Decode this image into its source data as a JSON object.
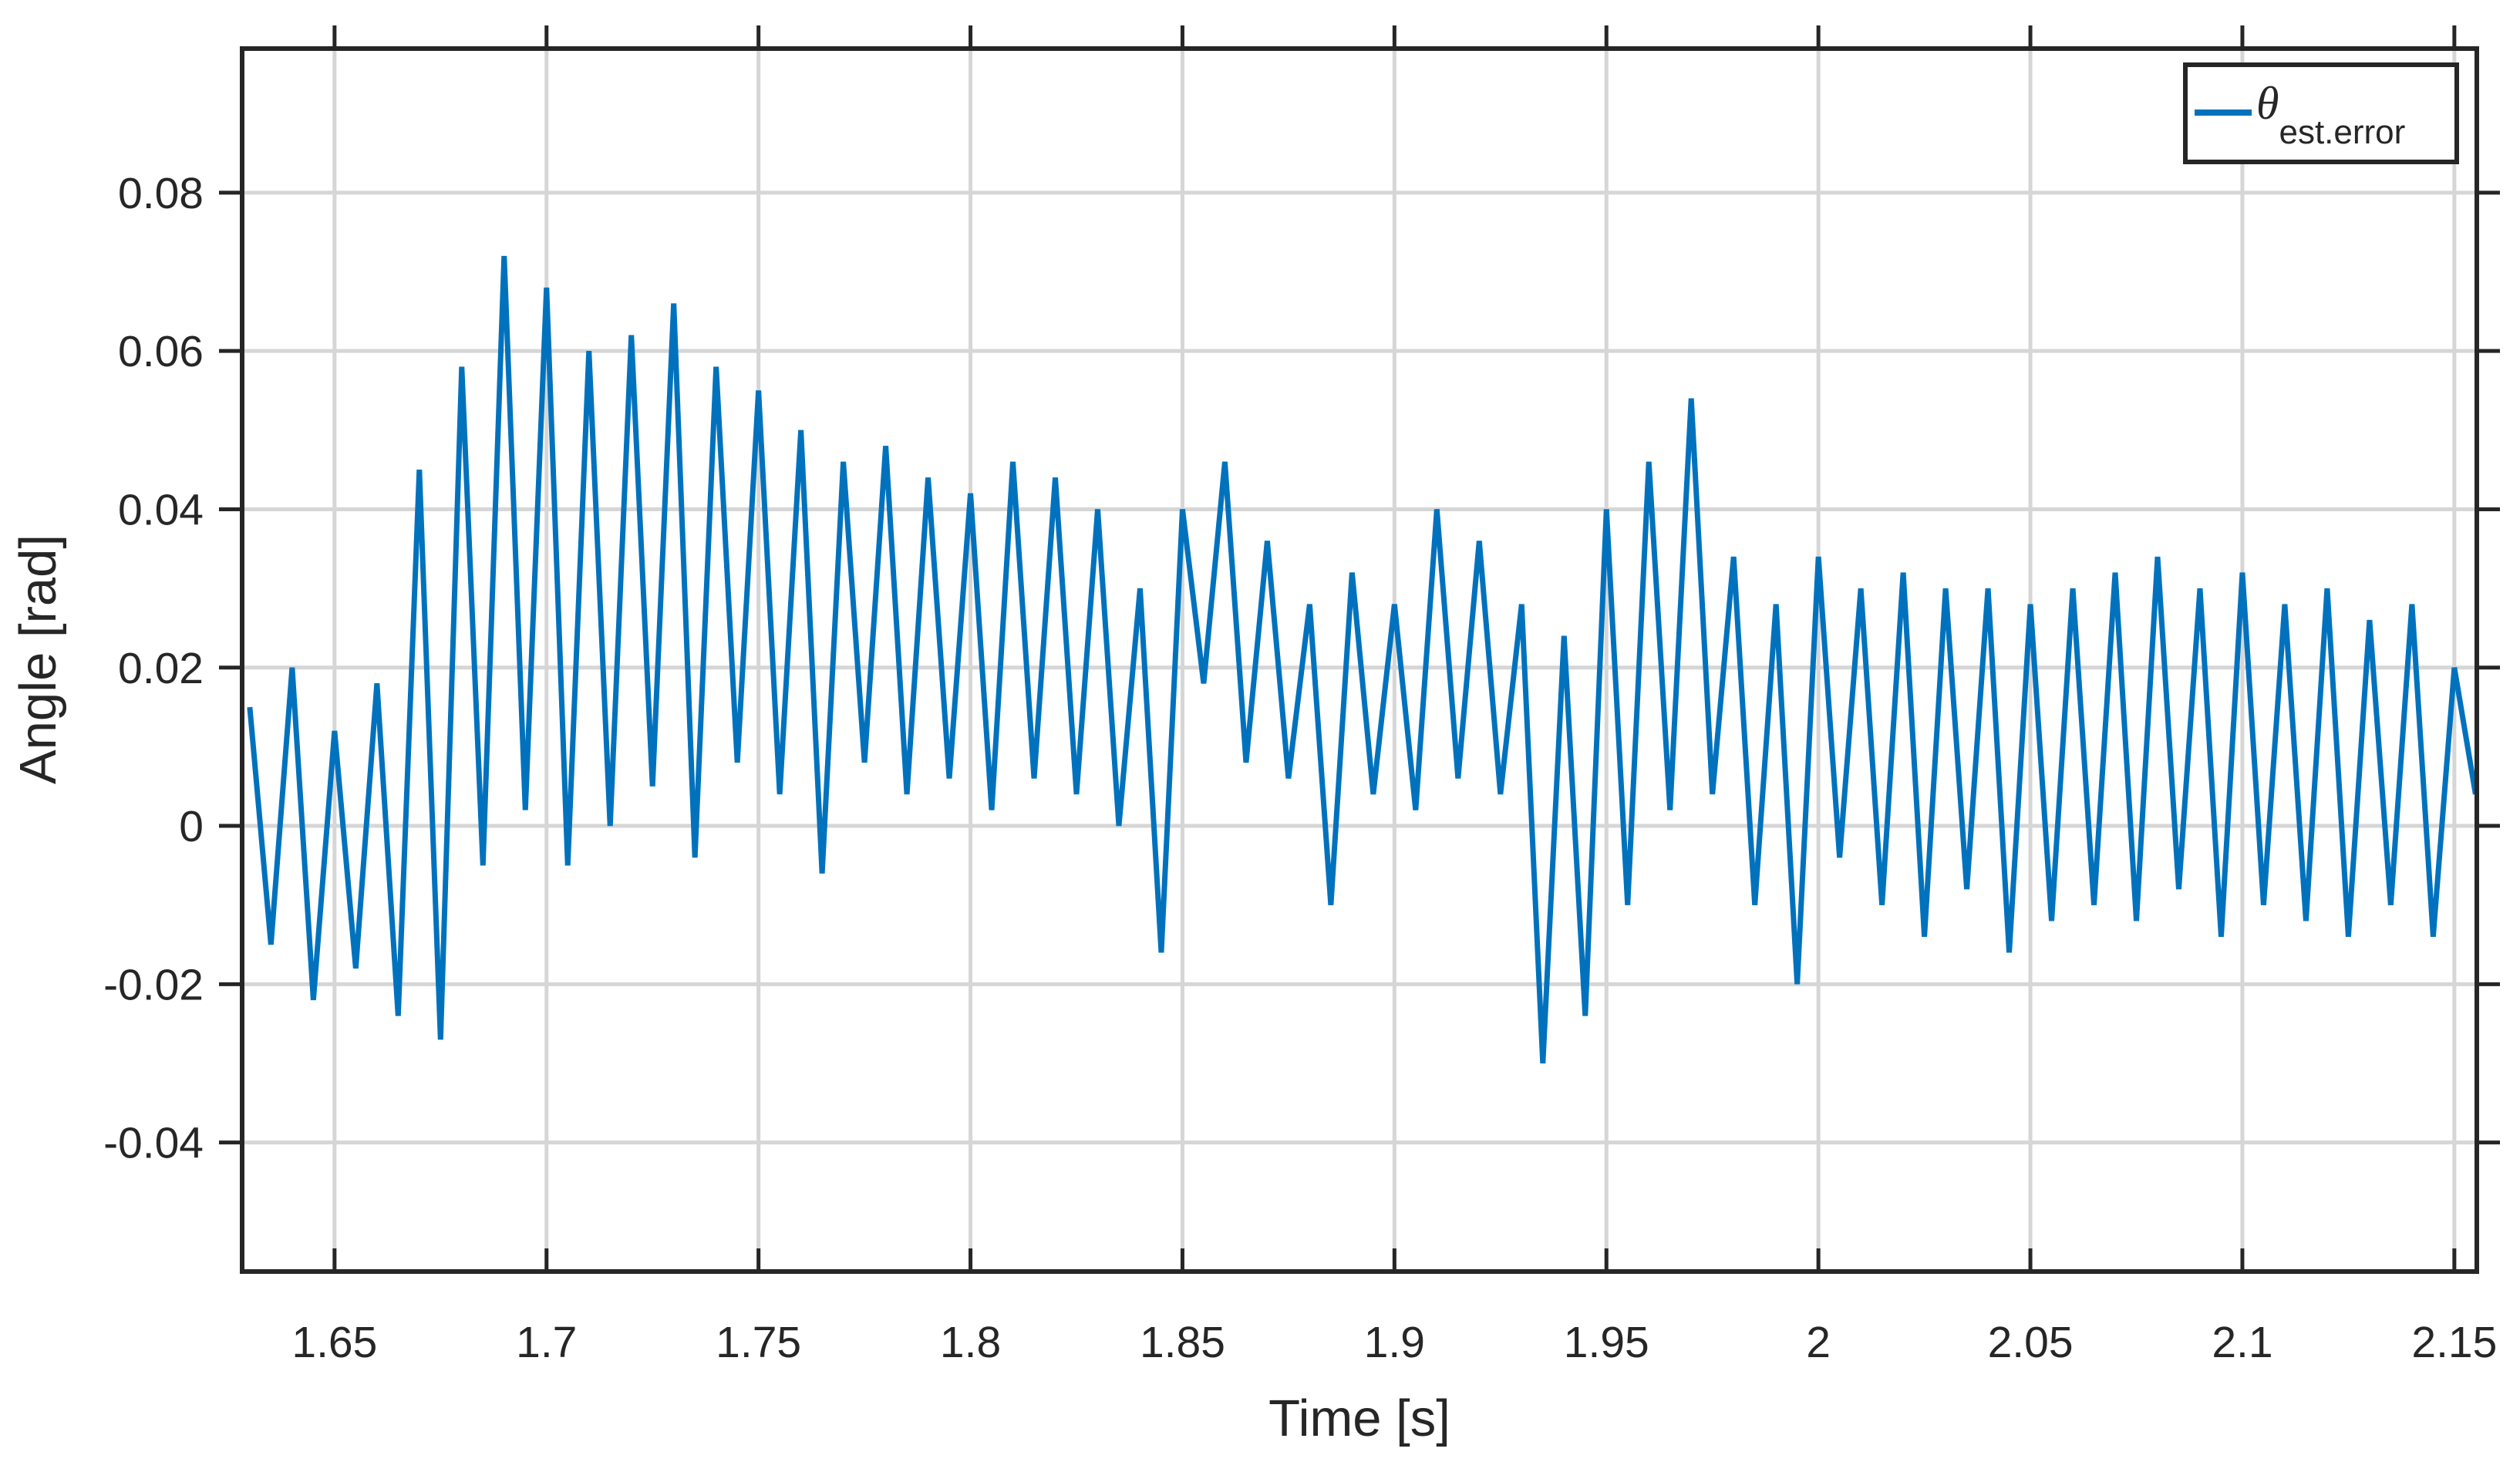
{
  "chart_data": {
    "type": "line",
    "xlabel": "Time [s]",
    "ylabel": "Angle [rad]",
    "xlim": [
      1.6282,
      2.1553
    ],
    "ylim": [
      -0.0563,
      0.0982
    ],
    "xticks": [
      1.65,
      1.7,
      1.75,
      1.8,
      1.85,
      1.9,
      1.95,
      2,
      2.05,
      2.1,
      2.15
    ],
    "yticks": [
      -0.04,
      -0.02,
      0,
      0.02,
      0.04,
      0.06,
      0.08
    ],
    "grid": true,
    "legend": "upper right",
    "x": [
      1.63,
      1.635,
      1.64,
      1.645,
      1.65,
      1.655,
      1.66,
      1.665,
      1.67,
      1.675,
      1.68,
      1.685,
      1.69,
      1.695,
      1.7,
      1.705,
      1.71,
      1.715,
      1.72,
      1.725,
      1.73,
      1.735,
      1.74,
      1.745,
      1.75,
      1.755,
      1.76,
      1.765,
      1.77,
      1.775,
      1.78,
      1.785,
      1.79,
      1.795,
      1.8,
      1.805,
      1.81,
      1.815,
      1.82,
      1.825,
      1.83,
      1.835,
      1.84,
      1.845,
      1.85,
      1.855,
      1.86,
      1.865,
      1.87,
      1.875,
      1.88,
      1.885,
      1.89,
      1.895,
      1.9,
      1.905,
      1.91,
      1.915,
      1.92,
      1.925,
      1.93,
      1.935,
      1.94,
      1.945,
      1.95,
      1.955,
      1.96,
      1.965,
      1.97,
      1.975,
      1.98,
      1.985,
      1.99,
      1.995,
      2.0,
      2.005,
      2.01,
      2.015,
      2.02,
      2.025,
      2.03,
      2.035,
      2.04,
      2.045,
      2.05,
      2.055,
      2.06,
      2.065,
      2.07,
      2.075,
      2.08,
      2.085,
      2.09,
      2.095,
      2.1,
      2.105,
      2.11,
      2.115,
      2.12,
      2.125,
      2.13,
      2.135,
      2.14,
      2.145,
      2.15,
      2.155
    ],
    "series": [
      {
        "name": "θ",
        "name_subscript": "est.error",
        "color": "#0072bd",
        "values": [
          0.015,
          -0.015,
          0.02,
          -0.022,
          0.012,
          -0.018,
          0.018,
          -0.024,
          0.045,
          -0.027,
          0.058,
          -0.005,
          0.072,
          0.002,
          0.068,
          -0.005,
          0.06,
          0.0,
          0.062,
          0.005,
          0.066,
          -0.004,
          0.058,
          0.008,
          0.055,
          0.004,
          0.05,
          -0.006,
          0.046,
          0.008,
          0.048,
          0.004,
          0.044,
          0.006,
          0.042,
          0.002,
          0.046,
          0.006,
          0.044,
          0.004,
          0.04,
          0.0,
          0.03,
          -0.016,
          0.04,
          0.018,
          0.046,
          0.008,
          0.036,
          0.006,
          0.028,
          -0.01,
          0.032,
          0.004,
          0.028,
          0.002,
          0.04,
          0.006,
          0.036,
          0.004,
          0.028,
          -0.03,
          0.024,
          -0.024,
          0.04,
          -0.01,
          0.046,
          0.002,
          0.054,
          0.004,
          0.034,
          -0.01,
          0.028,
          -0.02,
          0.034,
          -0.004,
          0.03,
          -0.01,
          0.032,
          -0.014,
          0.03,
          -0.008,
          0.03,
          -0.016,
          0.028,
          -0.012,
          0.03,
          -0.01,
          0.032,
          -0.012,
          0.034,
          -0.008,
          0.03,
          -0.014,
          0.032,
          -0.01,
          0.028,
          -0.012,
          0.03,
          -0.014,
          0.026,
          -0.01,
          0.028,
          -0.014,
          0.02,
          0.004
        ]
      }
    ]
  }
}
